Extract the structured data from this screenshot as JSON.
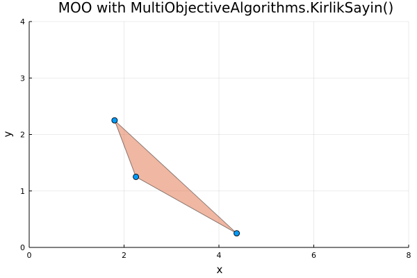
{
  "chart_data": {
    "type": "scatter",
    "title": "MOO with MultiObjectiveAlgorithms.KirlikSayin()",
    "xlabel": "x",
    "ylabel": "y",
    "xlim": [
      0,
      8
    ],
    "ylim": [
      0,
      4
    ],
    "xticks": [
      "0",
      "2",
      "4",
      "6",
      "8"
    ],
    "yticks": [
      "0",
      "1",
      "2",
      "3",
      "4"
    ],
    "grid": true,
    "points": [
      {
        "x": 1.8,
        "y": 2.25
      },
      {
        "x": 2.25,
        "y": 1.25
      },
      {
        "x": 4.375,
        "y": 0.25
      }
    ],
    "polygon": [
      {
        "x": 1.8,
        "y": 2.25
      },
      {
        "x": 4.375,
        "y": 0.25
      },
      {
        "x": 2.25,
        "y": 1.25
      }
    ],
    "colors": {
      "points": "#009af9",
      "polygon": "#e26f46"
    }
  }
}
